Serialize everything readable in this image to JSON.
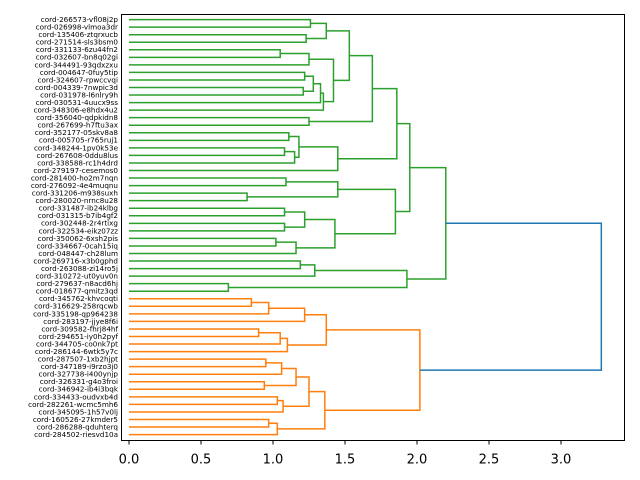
{
  "chart_data": {
    "type": "dendrogram",
    "orientation": "horizontal",
    "xlim": [
      0,
      3.45
    ],
    "xticks": [
      0.0,
      0.5,
      1.0,
      1.5,
      2.0,
      2.5,
      3.0
    ],
    "xtick_labels": [
      "0.0",
      "0.5",
      "1.0",
      "1.5",
      "2.0",
      "2.5",
      "3.0"
    ],
    "colors": {
      "green": "#2ca02c",
      "orange": "#ff7f0e",
      "blue": "#1f77b4"
    },
    "leaves": [
      "cord-266573-vfl08j2p",
      "cord-026998-vlmoa3dr",
      "cord-135406-ztqrxucb",
      "cord-271514-sls3bsm0",
      "cord-331133-6zu44fn2",
      "cord-032607-bn8q02gi",
      "cord-344491-93qdxzxu",
      "cord-004647-0fuy5tip",
      "cord-324607-rpwccvqi",
      "cord-004339-7nwpic3d",
      "cord-031978-l6nlry9h",
      "cord-030531-4uucx9ss",
      "cord-348306-e8hdx4u2",
      "cord-356040-qdpkidn8",
      "cord-267699-h7ftu3ax",
      "cord-352177-05skv8a8",
      "cord-005705-r765ruj1",
      "cord-348244-1pv0k53e",
      "cord-267608-0ddu8lus",
      "cord-338588-rc1h4drd",
      "cord-279197-cesemos0",
      "cord-281400-ho2m7nqn",
      "cord-276092-4e4muqnu",
      "cord-331206-m938suxh",
      "cord-280020-nrnc8u28",
      "cord-331487-ib24klbg",
      "cord-031315-b7ib4gf2",
      "cord-302448-2r4rtixg",
      "cord-322534-eikz07zz",
      "cord-350062-6xsh2pis",
      "cord-334667-0cah15iq",
      "cord-048447-ch28lum",
      "cord-269716-x3b0gphd",
      "cord-263088-zi14ro5j",
      "cord-310272-ut0yuv0n",
      "cord-279637-n8acd6hj",
      "cord-018677-qmitz3qd",
      "cord-345762-khvcoqti",
      "cord-316629-258rqcwb",
      "cord-335198-qp964238",
      "cord-283197-jjye8f6i",
      "cord-309582-fhrj84hf",
      "cord-294651-iy0h2pyf",
      "cord-344705-co0nk7pt",
      "cord-286144-6wtk5y7c",
      "cord-287507-1xb2hjpt",
      "cord-347189-i9rzo3j0",
      "cord-327738-i400ynjp",
      "cord-326331-g4o3froi",
      "cord-346942-ib4i3bqk",
      "cord-334433-oudvxb4d",
      "cord-282261-wcmc5mh6",
      "cord-345095-1h57v0lj",
      "cord-160526-27kmder5",
      "cord-286288-qduhterq",
      "cord-284502-riesvd10a"
    ],
    "merges": [
      [
        0,
        1,
        1.26,
        "green"
      ],
      [
        2,
        3,
        1.23,
        "green"
      ],
      [
        0,
        2,
        1.37,
        "green"
      ],
      [
        4,
        5,
        1.05,
        "green"
      ],
      [
        4,
        6,
        1.25,
        "green"
      ],
      [
        7,
        8,
        1.22,
        "green"
      ],
      [
        9,
        10,
        1.21,
        "green"
      ],
      [
        7,
        9,
        1.28,
        "green"
      ],
      [
        7,
        11,
        1.33,
        "green"
      ],
      [
        7,
        12,
        1.35,
        "green"
      ],
      [
        4,
        7,
        1.42,
        "green"
      ],
      [
        0,
        4,
        1.53,
        "green"
      ],
      [
        13,
        14,
        1.25,
        "green"
      ],
      [
        0,
        13,
        1.69,
        "green"
      ],
      [
        15,
        16,
        1.11,
        "green"
      ],
      [
        17,
        18,
        1.08,
        "green"
      ],
      [
        17,
        19,
        1.15,
        "green"
      ],
      [
        15,
        17,
        1.18,
        "green"
      ],
      [
        15,
        20,
        1.45,
        "green"
      ],
      [
        0,
        15,
        1.86,
        "green"
      ],
      [
        21,
        22,
        1.09,
        "green"
      ],
      [
        23,
        24,
        0.82,
        "green"
      ],
      [
        21,
        23,
        1.45,
        "green"
      ],
      [
        25,
        26,
        1.08,
        "green"
      ],
      [
        27,
        28,
        1.08,
        "green"
      ],
      [
        25,
        27,
        1.22,
        "green"
      ],
      [
        29,
        30,
        1.02,
        "green"
      ],
      [
        29,
        31,
        1.16,
        "green"
      ],
      [
        25,
        29,
        1.43,
        "green"
      ],
      [
        21,
        25,
        1.85,
        "green"
      ],
      [
        0,
        21,
        1.95,
        "green"
      ],
      [
        32,
        33,
        1.19,
        "green"
      ],
      [
        32,
        34,
        1.29,
        "green"
      ],
      [
        35,
        36,
        0.69,
        "green"
      ],
      [
        32,
        35,
        1.93,
        "green"
      ],
      [
        0,
        32,
        2.2,
        "green"
      ],
      [
        37,
        38,
        0.85,
        "orange"
      ],
      [
        37,
        39,
        0.97,
        "orange"
      ],
      [
        37,
        40,
        1.22,
        "orange"
      ],
      [
        41,
        42,
        0.9,
        "orange"
      ],
      [
        41,
        43,
        1.05,
        "orange"
      ],
      [
        41,
        44,
        1.1,
        "orange"
      ],
      [
        37,
        41,
        1.37,
        "orange"
      ],
      [
        45,
        46,
        0.95,
        "orange"
      ],
      [
        45,
        47,
        1.06,
        "orange"
      ],
      [
        48,
        49,
        0.94,
        "orange"
      ],
      [
        45,
        48,
        1.16,
        "orange"
      ],
      [
        50,
        51,
        1.03,
        "orange"
      ],
      [
        50,
        52,
        1.07,
        "orange"
      ],
      [
        45,
        50,
        1.25,
        "orange"
      ],
      [
        53,
        54,
        0.97,
        "orange"
      ],
      [
        53,
        55,
        1.03,
        "orange"
      ],
      [
        45,
        53,
        1.36,
        "orange"
      ],
      [
        37,
        45,
        2.02,
        "orange"
      ],
      [
        0,
        37,
        3.28,
        "blue"
      ]
    ]
  }
}
